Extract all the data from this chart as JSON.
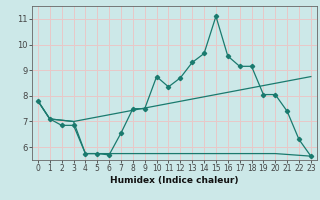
{
  "title": "",
  "xlabel": "Humidex (Indice chaleur)",
  "bg_color": "#cce8e8",
  "grid_color": "#e8c8c8",
  "line_color": "#1a7a6e",
  "axis_color": "#444444",
  "xlim": [
    -0.5,
    23.5
  ],
  "ylim": [
    5.5,
    11.5
  ],
  "xticks": [
    0,
    1,
    2,
    3,
    4,
    5,
    6,
    7,
    8,
    9,
    10,
    11,
    12,
    13,
    14,
    15,
    16,
    17,
    18,
    19,
    20,
    21,
    22,
    23
  ],
  "yticks": [
    6,
    7,
    8,
    9,
    10,
    11
  ],
  "line1_x": [
    0,
    1,
    2,
    3,
    4,
    5,
    6,
    7,
    8,
    9,
    10,
    11,
    12,
    13,
    14,
    15,
    16,
    17,
    18,
    19,
    20,
    21,
    22,
    23
  ],
  "line1_y": [
    7.8,
    7.1,
    6.85,
    6.85,
    5.75,
    5.75,
    5.7,
    6.55,
    7.5,
    7.5,
    8.75,
    8.35,
    8.7,
    9.3,
    9.65,
    11.1,
    9.55,
    9.15,
    9.15,
    8.05,
    8.05,
    7.4,
    6.3,
    5.65
  ],
  "line2_x": [
    0,
    1,
    3,
    23
  ],
  "line2_y": [
    7.8,
    7.1,
    7.0,
    8.75
  ],
  "line3_x": [
    0,
    1,
    3,
    4,
    20,
    23
  ],
  "line3_y": [
    7.8,
    7.1,
    7.0,
    5.75,
    5.75,
    5.65
  ]
}
